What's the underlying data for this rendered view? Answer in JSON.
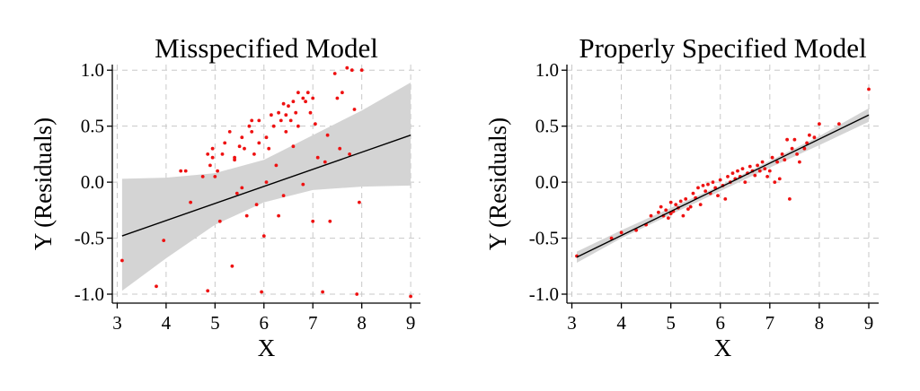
{
  "chart_data": [
    {
      "type": "scatter",
      "title": "Misspecified Model",
      "xlabel": "X",
      "ylabel": "Y (Residuals)",
      "xlim": [
        2.9,
        9.2
      ],
      "ylim": [
        -1.08,
        1.05
      ],
      "xticks": [
        3,
        4,
        5,
        6,
        7,
        8,
        9
      ],
      "xtick_labels": [
        "3",
        "4",
        "5",
        "6",
        "7",
        "8",
        "9"
      ],
      "yticks": [
        -1.0,
        -0.5,
        0.0,
        0.5,
        1.0
      ],
      "ytick_labels": [
        "-1.0",
        "-0.5",
        "0.0",
        "0.5",
        "1.0"
      ],
      "grid": true,
      "colors": {
        "points": "#ee1111",
        "fit": "#000000",
        "band": "#d4d4d4"
      },
      "fit_line": {
        "x": [
          3.1,
          9.0
        ],
        "y": [
          -0.48,
          0.42
        ]
      },
      "confidence_band": {
        "x": [
          3.1,
          4.0,
          5.0,
          6.0,
          7.0,
          8.0,
          9.0
        ],
        "lower": [
          -0.97,
          -0.68,
          -0.38,
          -0.18,
          -0.07,
          -0.04,
          -0.03
        ],
        "upper": [
          0.03,
          0.04,
          0.08,
          0.2,
          0.42,
          0.64,
          0.89
        ]
      },
      "points": {
        "x": [
          3.1,
          3.8,
          3.95,
          4.3,
          4.4,
          4.5,
          4.75,
          4.85,
          4.85,
          4.9,
          4.95,
          4.95,
          5.0,
          5.05,
          5.1,
          5.15,
          5.2,
          5.3,
          5.35,
          5.4,
          5.4,
          5.45,
          5.5,
          5.55,
          5.55,
          5.6,
          5.65,
          5.7,
          5.75,
          5.75,
          5.8,
          5.85,
          5.9,
          5.9,
          5.95,
          6.0,
          6.05,
          6.05,
          6.1,
          6.15,
          6.2,
          6.25,
          6.3,
          6.3,
          6.35,
          6.4,
          6.4,
          6.45,
          6.45,
          6.5,
          6.55,
          6.6,
          6.6,
          6.65,
          6.7,
          6.7,
          6.8,
          6.8,
          6.85,
          6.9,
          6.95,
          7.0,
          7.0,
          7.05,
          7.1,
          7.2,
          7.25,
          7.3,
          7.35,
          7.45,
          7.5,
          7.55,
          7.6,
          7.7,
          7.75,
          7.8,
          7.85,
          7.9,
          7.95,
          8.0,
          9.0
        ],
        "y": [
          -0.7,
          -0.93,
          -0.52,
          0.1,
          0.1,
          -0.18,
          0.05,
          -0.97,
          0.25,
          0.15,
          0.22,
          0.3,
          0.05,
          0.1,
          -0.35,
          0.25,
          0.35,
          0.45,
          -0.75,
          0.2,
          0.22,
          -0.1,
          0.32,
          -0.05,
          0.4,
          0.3,
          -0.3,
          0.5,
          0.45,
          0.55,
          0.25,
          -0.2,
          0.35,
          0.55,
          -0.98,
          -0.48,
          0.4,
          0.0,
          0.3,
          0.6,
          0.5,
          0.15,
          0.62,
          -0.3,
          0.55,
          0.7,
          -0.12,
          0.45,
          0.6,
          0.68,
          0.55,
          0.72,
          0.32,
          0.62,
          0.8,
          0.5,
          0.75,
          -0.02,
          0.72,
          0.8,
          0.62,
          0.75,
          -0.35,
          0.52,
          0.22,
          -0.98,
          0.18,
          0.42,
          -0.35,
          0.97,
          0.75,
          0.3,
          0.8,
          1.02,
          0.25,
          1.0,
          0.65,
          -1.0,
          -0.18,
          1.0,
          -1.02
        ]
      }
    },
    {
      "type": "scatter",
      "title": "Properly Specified Model",
      "xlabel": "X",
      "ylabel": "Y (Residuals)",
      "xlim": [
        2.9,
        9.2
      ],
      "ylim": [
        -1.08,
        1.05
      ],
      "xticks": [
        3,
        4,
        5,
        6,
        7,
        8,
        9
      ],
      "xtick_labels": [
        "3",
        "4",
        "5",
        "6",
        "7",
        "8",
        "9"
      ],
      "yticks": [
        -1.0,
        -0.5,
        0.0,
        0.5,
        1.0
      ],
      "ytick_labels": [
        "-1.0",
        "-0.5",
        "0.0",
        "0.5",
        "1.0"
      ],
      "grid": true,
      "colors": {
        "points": "#ee1111",
        "fit": "#000000",
        "band": "#d4d4d4"
      },
      "fit_line": {
        "x": [
          3.1,
          9.0
        ],
        "y": [
          -0.67,
          0.6
        ]
      },
      "confidence_band": {
        "x": [
          3.1,
          4.0,
          5.0,
          6.0,
          7.0,
          8.0,
          9.0
        ],
        "lower": [
          -0.72,
          -0.5,
          -0.29,
          -0.08,
          0.13,
          0.33,
          0.54
        ],
        "upper": [
          -0.62,
          -0.43,
          -0.23,
          -0.03,
          0.19,
          0.41,
          0.66
        ]
      },
      "points": {
        "x": [
          3.1,
          3.8,
          4.0,
          4.3,
          4.5,
          4.6,
          4.75,
          4.8,
          4.85,
          4.9,
          4.95,
          5.0,
          5.0,
          5.05,
          5.1,
          5.15,
          5.2,
          5.25,
          5.3,
          5.35,
          5.4,
          5.45,
          5.5,
          5.55,
          5.6,
          5.65,
          5.7,
          5.75,
          5.8,
          5.85,
          5.9,
          5.95,
          6.0,
          6.05,
          6.1,
          6.15,
          6.2,
          6.25,
          6.3,
          6.35,
          6.4,
          6.45,
          6.5,
          6.55,
          6.6,
          6.65,
          6.7,
          6.75,
          6.8,
          6.85,
          6.9,
          6.95,
          7.0,
          7.05,
          7.1,
          7.15,
          7.2,
          7.25,
          7.3,
          7.35,
          7.4,
          7.45,
          7.5,
          7.55,
          7.6,
          7.7,
          7.75,
          7.8,
          7.9,
          8.0,
          8.4,
          9.0
        ],
        "y": [
          -0.66,
          -0.5,
          -0.45,
          -0.43,
          -0.38,
          -0.3,
          -0.27,
          -0.22,
          -0.3,
          -0.25,
          -0.32,
          -0.18,
          -0.28,
          -0.26,
          -0.2,
          -0.23,
          -0.17,
          -0.3,
          -0.15,
          -0.24,
          -0.22,
          -0.1,
          -0.14,
          -0.05,
          -0.2,
          -0.03,
          -0.08,
          -0.02,
          -0.1,
          0.0,
          -0.05,
          -0.12,
          0.02,
          -0.03,
          -0.15,
          0.05,
          0.0,
          0.08,
          0.03,
          0.1,
          0.05,
          0.12,
          0.0,
          0.08,
          0.14,
          0.1,
          0.06,
          0.15,
          0.1,
          0.18,
          0.12,
          0.05,
          0.1,
          0.22,
          0.0,
          0.18,
          0.03,
          0.25,
          0.2,
          0.38,
          -0.15,
          0.3,
          0.38,
          0.25,
          0.18,
          0.3,
          0.35,
          0.42,
          0.4,
          0.52,
          0.52,
          0.83
        ]
      }
    }
  ]
}
